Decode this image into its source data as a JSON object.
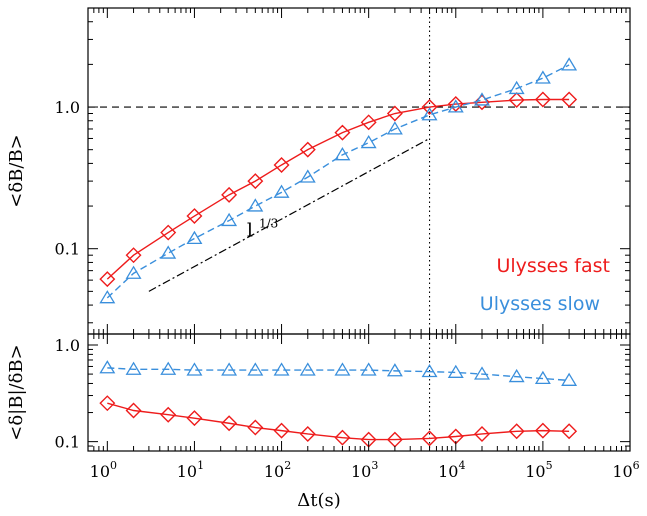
{
  "chart_data": [
    {
      "type": "line",
      "panel": "top",
      "xscale": "log",
      "yscale": "log",
      "xlim": [
        0.6,
        1000000
      ],
      "ylim": [
        0.025,
        5
      ],
      "ylabel": "<δB/B>",
      "yticks": [
        {
          "value": 0.1,
          "label": "0.1"
        },
        {
          "value": 1.0,
          "label": "1.0"
        }
      ],
      "x": [
        1,
        2,
        5,
        10,
        25,
        50,
        100,
        200,
        500,
        1000,
        2000,
        5000,
        10000,
        20000,
        50000,
        100000,
        200000
      ],
      "series": [
        {
          "name": "Ulysses fast",
          "color": "#ee1c1c",
          "marker": "diamond",
          "linestyle": "solid",
          "values": [
            0.061,
            0.09,
            0.13,
            0.17,
            0.24,
            0.3,
            0.39,
            0.5,
            0.66,
            0.78,
            0.9,
            1.0,
            1.05,
            1.08,
            1.12,
            1.13,
            1.13
          ]
        },
        {
          "name": "Ulysses slow",
          "color": "#3a8fdc",
          "marker": "triangle",
          "linestyle": "dashed",
          "values": [
            0.045,
            0.067,
            0.093,
            0.118,
            0.158,
            0.2,
            0.25,
            0.32,
            0.46,
            0.56,
            0.7,
            0.88,
            1.0,
            1.12,
            1.35,
            1.6,
            1.98
          ]
        }
      ],
      "reference_lines": [
        {
          "kind": "horizontal",
          "value": 1.0,
          "style": "dashed"
        },
        {
          "kind": "vertical",
          "value": 5000,
          "style": "dotted"
        }
      ],
      "annotations": [
        {
          "kind": "power-law guide",
          "label_base": "l",
          "label_exp": "1/3",
          "x_start": 3,
          "x_end": 5000,
          "y_start": 0.05,
          "y_end": 0.6,
          "label_x": 40,
          "label_y": 0.122,
          "style": "dash-dot"
        }
      ],
      "legend": {
        "placement": "bottom-right",
        "entries": [
          "Ulysses fast",
          "Ulysses slow"
        ]
      }
    },
    {
      "type": "line",
      "panel": "bottom",
      "xscale": "log",
      "yscale": "log",
      "xlim": [
        0.6,
        1000000
      ],
      "ylim": [
        0.08,
        1.3
      ],
      "ylabel": "<δ|B|/δB>",
      "xlabel": "Δt(s)",
      "xticks": [
        {
          "value": 1,
          "base": "10",
          "exp": "0"
        },
        {
          "value": 10,
          "base": "10",
          "exp": "1"
        },
        {
          "value": 100,
          "base": "10",
          "exp": "2"
        },
        {
          "value": 1000,
          "base": "10",
          "exp": "3"
        },
        {
          "value": 10000,
          "base": "10",
          "exp": "4"
        },
        {
          "value": 100000,
          "base": "10",
          "exp": "5"
        },
        {
          "value": 1000000,
          "base": "10",
          "exp": "6"
        }
      ],
      "yticks": [
        {
          "value": 0.1,
          "label": "0.1"
        },
        {
          "value": 1.0,
          "label": "1.0"
        }
      ],
      "x": [
        1,
        2,
        5,
        10,
        25,
        50,
        100,
        200,
        500,
        1000,
        2000,
        5000,
        10000,
        20000,
        50000,
        100000,
        200000
      ],
      "series": [
        {
          "name": "Ulysses fast",
          "color": "#ee1c1c",
          "marker": "diamond",
          "linestyle": "solid",
          "values": [
            0.25,
            0.21,
            0.19,
            0.175,
            0.155,
            0.14,
            0.13,
            0.12,
            0.11,
            0.105,
            0.105,
            0.108,
            0.113,
            0.12,
            0.128,
            0.13,
            0.128
          ]
        },
        {
          "name": "Ulysses slow",
          "color": "#3a8fdc",
          "marker": "triangle",
          "linestyle": "dashed",
          "values": [
            0.58,
            0.56,
            0.56,
            0.55,
            0.55,
            0.55,
            0.55,
            0.55,
            0.55,
            0.55,
            0.54,
            0.53,
            0.52,
            0.5,
            0.47,
            0.45,
            0.43
          ]
        }
      ],
      "reference_lines": [
        {
          "kind": "vertical",
          "value": 5000,
          "style": "dotted"
        }
      ]
    }
  ]
}
